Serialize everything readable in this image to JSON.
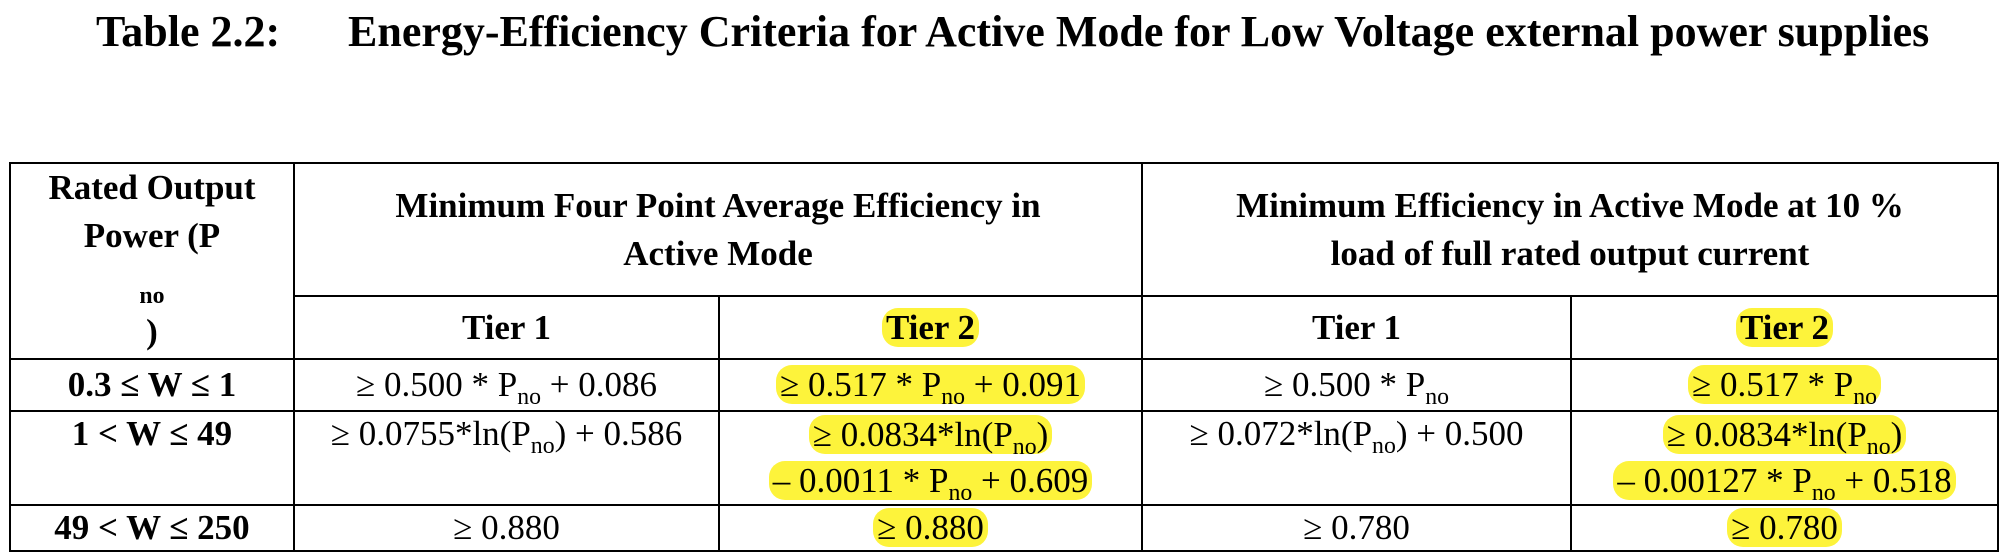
{
  "caption": {
    "number": "Table 2.2:",
    "title": "Energy-Efficiency Criteria for Active Mode for Low Voltage external power supplies"
  },
  "table": {
    "rated_output_header": {
      "line1": "Rated Output",
      "line2_prefix": "Power (P",
      "line2_sub": "no",
      "line2_suffix": ")"
    },
    "group_headers": [
      {
        "line1": "Minimum Four Point Average Efficiency in",
        "line2": "Active Mode"
      },
      {
        "line1": "Minimum Efficiency in Active Mode at 10 %",
        "line2": "load of full rated output current"
      }
    ],
    "tier_labels": [
      "Tier 1",
      "Tier 2",
      "Tier 1",
      "Tier 2"
    ],
    "highlight_color": "#fdf33b",
    "rows": [
      {
        "range": "0.3 ≤ W ≤ 1",
        "avg_tier1": {
          "a": "≥ 0.500 * P",
          "sub": "no",
          "b": " + 0.086"
        },
        "avg_tier2": {
          "a": "≥ 0.517 * P",
          "sub": "no",
          "b": " + 0.091"
        },
        "load10_tier1": {
          "a": "≥ 0.500 * P",
          "sub": "no"
        },
        "load10_tier2": {
          "a": "≥ 0.517 * P",
          "sub": "no"
        }
      },
      {
        "range": "1 < W ≤ 49",
        "avg_tier1": {
          "a": "≥ 0.0755*ln(P",
          "sub": "no",
          "b": ") + 0.586"
        },
        "avg_tier2": {
          "l1a": "≥ 0.0834*ln(P",
          "l1sub": "no",
          "l1b": ")",
          "l2a": "– 0.0011 * P",
          "l2sub": "no",
          "l2b": " + 0.609"
        },
        "load10_tier1": {
          "a": "≥ 0.072*ln(P",
          "sub": "no",
          "b": ") + 0.500"
        },
        "load10_tier2": {
          "l1a": "≥ 0.0834*ln(P",
          "l1sub": "no",
          "l1b": ")",
          "l2a": "– 0.00127 * P",
          "l2sub": "no",
          "l2b": " + 0.518"
        }
      },
      {
        "range": "49 < W ≤ 250",
        "avg_tier1": "≥ 0.880",
        "avg_tier2": "≥ 0.880",
        "load10_tier1": "≥ 0.780",
        "load10_tier2": "≥ 0.780"
      }
    ]
  }
}
